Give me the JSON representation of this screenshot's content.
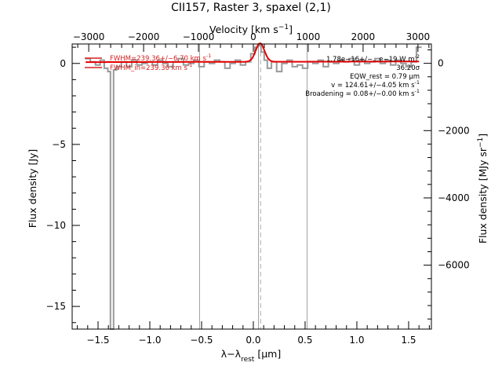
{
  "chart_data": {
    "type": "line",
    "title": "CII157, Raster 3, spaxel (2,1)",
    "xlabel": "λ−λ_rest [μm]",
    "ylabel": "Flux density [Jy]",
    "top_axis_label": "Velocity [km s^-1]",
    "right_axis_label": "Flux density [MJy sr^-1]",
    "xlim": [
      -1.75,
      1.72
    ],
    "ylim": [
      -16.4,
      1.2
    ],
    "top_xlim": [
      -3302,
      3245
    ],
    "right_ylim": [
      -7900,
      575
    ],
    "x_ticks": [
      -1.5,
      -1.0,
      -0.5,
      0.0,
      0.5,
      1.0,
      1.5
    ],
    "x_tick_labels": [
      "−1.5",
      "−1.0",
      "−0.5",
      "0.0",
      "0.5",
      "1.0",
      "1.5"
    ],
    "y_ticks": [
      0,
      -5,
      -10,
      -15
    ],
    "y_tick_labels": [
      "0",
      "−5",
      "−10",
      "−15"
    ],
    "top_ticks": [
      -3000,
      -2000,
      -1000,
      0,
      1000,
      2000,
      3000
    ],
    "top_tick_labels": [
      "−3000",
      "−2000",
      "−1000",
      "0",
      "1000",
      "2000",
      "3000"
    ],
    "right_ticks": [
      0,
      -2000,
      -4000,
      -6000
    ],
    "right_tick_labels": [
      "0",
      "−2000",
      "−4000",
      "−6000"
    ],
    "vertical_lines": [
      -0.52,
      0.05,
      0.52
    ],
    "rest_line_x": 0.07,
    "grid": false,
    "series": [
      {
        "color": "#9a9a9a",
        "style": "step",
        "x": [
          -1.6,
          -1.55,
          -1.5,
          -1.46,
          -1.42,
          -1.39,
          -1.37,
          -1.36,
          -1.34,
          -1.3,
          -1.25,
          -1.2,
          -1.15,
          -1.1,
          -1.05,
          -1.0,
          -0.95,
          -0.9,
          -0.85,
          -0.8,
          -0.75,
          -0.7,
          -0.65,
          -0.6,
          -0.55,
          -0.5,
          -0.45,
          -0.4,
          -0.35,
          -0.3,
          -0.25,
          -0.2,
          -0.15,
          -0.1,
          -0.05,
          0.0,
          0.03,
          0.06,
          0.09,
          0.12,
          0.15,
          0.2,
          0.25,
          0.3,
          0.35,
          0.4,
          0.45,
          0.5,
          0.55,
          0.6,
          0.65,
          0.7,
          0.75,
          0.8,
          0.85,
          0.9,
          0.95,
          1.0,
          1.05,
          1.1,
          1.15,
          1.2,
          1.25,
          1.3,
          1.35,
          1.4,
          1.45,
          1.5,
          1.55,
          1.6
        ],
        "y": [
          0.3,
          0.1,
          -0.1,
          0.2,
          -0.3,
          -0.5,
          -16.4,
          -16.4,
          -0.4,
          -0.2,
          0.1,
          -0.2,
          0.2,
          -0.1,
          0.0,
          0.1,
          -0.1,
          0.2,
          0.0,
          -0.2,
          0.1,
          0.3,
          -0.1,
          0.0,
          0.2,
          -0.2,
          0.1,
          0.0,
          0.2,
          0.1,
          -0.3,
          0.0,
          0.2,
          -0.1,
          0.1,
          0.6,
          1.0,
          1.1,
          0.7,
          0.2,
          -0.3,
          0.1,
          -0.5,
          0.0,
          0.2,
          -0.2,
          -0.1,
          -0.3,
          0.1,
          0.0,
          0.2,
          -0.2,
          0.1,
          0.0,
          0.2,
          0.1,
          0.3,
          -0.1,
          0.2,
          0.0,
          0.1,
          0.3,
          0.0,
          0.2,
          -0.1,
          0.2,
          0.0,
          -0.2,
          0.1,
          1.0
        ]
      },
      {
        "color": "#e60000",
        "style": "line",
        "model": "gaussian",
        "continuum": [
          0.08,
          0.12
        ],
        "amplitude": 1.15,
        "center": 0.065,
        "sigma": 0.042
      }
    ],
    "annotations": {
      "left": [
        {
          "text": "FWHM=239.36+/−6.70 km s^-1",
          "color": "#d62020"
        },
        {
          "text": "FWHM_in=239.36 km s^-1",
          "color": "#d62020"
        }
      ],
      "right": [
        {
          "text": "1.78e−16+/−...e−19 W m^-2"
        },
        {
          "text": "36.20σ"
        },
        {
          "text": "EQW_rest = 0.79 μm"
        },
        {
          "text": "v = 124.61+/−4.05 km s^-1"
        },
        {
          "text": "Broadening = 0.08+/−0.00 km s^-1"
        }
      ]
    }
  }
}
